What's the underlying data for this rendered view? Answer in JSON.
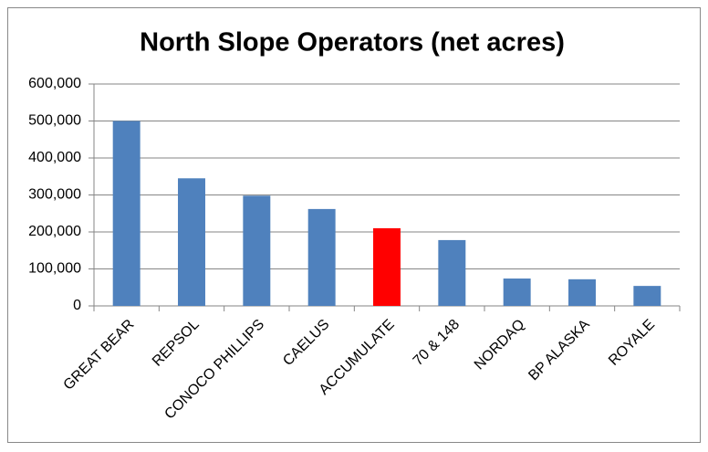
{
  "chart_data": {
    "type": "bar",
    "title": "North Slope Operators (net acres)",
    "categories": [
      "GREAT BEAR",
      "REPSOL",
      "CONOCO PHILLIPS",
      "CAELUS",
      "ACCUMULATE",
      "70 & 148",
      "NORDAQ",
      "BP ALASKA",
      "ROYALE"
    ],
    "values": [
      500000,
      345000,
      298000,
      262000,
      210000,
      178000,
      74000,
      72000,
      54000
    ],
    "colors": [
      "#4f81bd",
      "#4f81bd",
      "#4f81bd",
      "#4f81bd",
      "#ff0000",
      "#4f81bd",
      "#4f81bd",
      "#4f81bd",
      "#4f81bd"
    ],
    "ylim": [
      0,
      600000
    ],
    "yticks": [
      0,
      {
        "value": 100000,
        "label": "100,000"
      },
      {
        "value": 200000,
        "label": "200,000"
      },
      {
        "value": 300000,
        "label": "300,000"
      },
      {
        "value": 400000,
        "label": "400,000"
      },
      {
        "value": 500000,
        "label": "500,000"
      },
      {
        "value": 600000,
        "label": "600,000"
      }
    ],
    "grid": true
  }
}
